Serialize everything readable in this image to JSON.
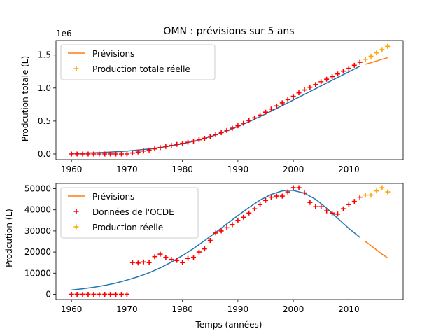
{
  "chart_data": {
    "title": "OMN : prévisions sur 5 ans",
    "xlabel": "Temps (années)",
    "charts": [
      {
        "type": "line",
        "ylabel": "Prodcution totale (L)",
        "y_offset_label": "1e6",
        "xlim": [
          1957.2,
          2019.8
        ],
        "ylim": [
          -0.085,
          1.72
        ],
        "x_ticks": [
          1960,
          1970,
          1980,
          1990,
          2000,
          2010
        ],
        "y_ticks": [
          0.0,
          0.5,
          1.0,
          1.5
        ],
        "y_tick_labels": [
          "0.0",
          "0.5",
          "1.0",
          "1.5"
        ],
        "legend": {
          "placement": "top-left",
          "entries": [
            {
              "label": "Prévisions",
              "kind": "line",
              "color": "#ff7f0e"
            },
            {
              "label": "Production totale réelle",
              "kind": "plus",
              "color": "#ffa500"
            }
          ]
        },
        "series": [
          {
            "style": "line",
            "color": "#1f77b4",
            "x": [
              1960,
              1962,
              1964,
              1966,
              1968,
              1970,
              1972,
              1974,
              1976,
              1978,
              1980,
              1982,
              1984,
              1986,
              1988,
              1990,
              1992,
              1994,
              1996,
              1998,
              2000,
              2002,
              2004,
              2006,
              2008,
              2010,
              2012
            ],
            "y": [
              0.01,
              0.013,
              0.018,
              0.025,
              0.034,
              0.046,
              0.06,
              0.077,
              0.098,
              0.124,
              0.155,
              0.193,
              0.238,
              0.29,
              0.35,
              0.417,
              0.49,
              0.568,
              0.65,
              0.735,
              0.82,
              0.905,
              0.99,
              1.075,
              1.16,
              1.245,
              1.33
            ]
          },
          {
            "style": "line",
            "color": "#ff7f0e",
            "x": [
              2013,
              2014,
              2015,
              2016,
              2017
            ],
            "y": [
              1.36,
              1.385,
              1.41,
              1.435,
              1.46
            ]
          },
          {
            "style": "plus",
            "color": "#ff0000",
            "x": [
              1960,
              1961,
              1962,
              1963,
              1964,
              1965,
              1966,
              1967,
              1968,
              1969,
              1970,
              1971,
              1972,
              1973,
              1974,
              1975,
              1976,
              1977,
              1978,
              1979,
              1980,
              1981,
              1982,
              1983,
              1984,
              1985,
              1986,
              1987,
              1988,
              1989,
              1990,
              1991,
              1992,
              1993,
              1994,
              1995,
              1996,
              1997,
              1998,
              1999,
              2000,
              2001,
              2002,
              2003,
              2004,
              2005,
              2006,
              2007,
              2008,
              2009,
              2010,
              2011,
              2012
            ],
            "y": [
              0,
              0,
              0,
              0,
              0,
              0,
              0,
              0,
              0,
              0,
              0,
              0.015,
              0.03,
              0.045,
              0.06,
              0.078,
              0.097,
              0.114,
              0.131,
              0.147,
              0.162,
              0.179,
              0.197,
              0.217,
              0.239,
              0.265,
              0.294,
              0.324,
              0.357,
              0.392,
              0.428,
              0.466,
              0.506,
              0.548,
              0.59,
              0.635,
              0.682,
              0.729,
              0.776,
              0.825,
              0.876,
              0.927,
              0.971,
              1.012,
              1.054,
              1.095,
              1.134,
              1.172,
              1.213,
              1.256,
              1.299,
              1.345,
              1.39
            ]
          },
          {
            "style": "plus",
            "color": "#ffa500",
            "x": [
              2013,
              2014,
              2015,
              2016,
              2017
            ],
            "y": [
              1.435,
              1.482,
              1.532,
              1.583,
              1.632
            ]
          }
        ]
      },
      {
        "type": "line",
        "ylabel": "Prodcution (L)",
        "xlim": [
          1957.2,
          2019.8
        ],
        "ylim": [
          -2500,
          52500
        ],
        "x_ticks": [
          1960,
          1970,
          1980,
          1990,
          2000,
          2010
        ],
        "x_tick_labels": [
          "1960",
          "1970",
          "1980",
          "1990",
          "2000",
          "2010"
        ],
        "y_ticks": [
          0,
          10000,
          20000,
          30000,
          40000,
          50000
        ],
        "y_tick_labels": [
          "0",
          "10000",
          "20000",
          "30000",
          "40000",
          "50000"
        ],
        "legend": {
          "placement": "top-left",
          "entries": [
            {
              "label": "Prévisions",
              "kind": "line",
              "color": "#ff7f0e"
            },
            {
              "label": "Données de l'OCDE",
              "kind": "plus",
              "color": "#ff0000"
            },
            {
              "label": "Production réelle",
              "kind": "plus",
              "color": "#ffa500"
            }
          ]
        },
        "series": [
          {
            "style": "line",
            "color": "#1f77b4",
            "x": [
              1960,
              1962,
              1964,
              1966,
              1968,
              1970,
              1972,
              1974,
              1976,
              1978,
              1980,
              1982,
              1984,
              1986,
              1988,
              1990,
              1992,
              1994,
              1996,
              1998,
              1999,
              2000,
              2002,
              2004,
              2006,
              2008,
              2010,
              2012
            ],
            "y": [
              2000,
              2600,
              3300,
              4200,
              5300,
              6700,
              8300,
              10200,
              12500,
              15200,
              18300,
              21700,
              25400,
              29300,
              33300,
              37300,
              41100,
              44600,
              47300,
              49000,
              49300,
              49200,
              47900,
              45000,
              40800,
              36000,
              31200,
              27000
            ]
          },
          {
            "style": "line",
            "color": "#ff7f0e",
            "x": [
              2013,
              2014,
              2015,
              2016,
              2017
            ],
            "y": [
              25000,
              23000,
              21000,
              19000,
              17200
            ]
          },
          {
            "style": "plus",
            "color": "#ff0000",
            "x": [
              1960,
              1961,
              1962,
              1963,
              1964,
              1965,
              1966,
              1967,
              1968,
              1969,
              1970,
              1971,
              1972,
              1973,
              1974,
              1975,
              1976,
              1977,
              1978,
              1979,
              1980,
              1981,
              1982,
              1983,
              1984,
              1985,
              1986,
              1987,
              1988,
              1989,
              1990,
              1991,
              1992,
              1993,
              1994,
              1995,
              1996,
              1997,
              1998,
              1999,
              2000,
              2001,
              2002,
              2003,
              2004,
              2005,
              2006,
              2007,
              2008,
              2009,
              2010,
              2011,
              2012
            ],
            "y": [
              0,
              0,
              0,
              0,
              0,
              0,
              0,
              0,
              0,
              0,
              0,
              15000,
              14800,
              15300,
              15000,
              17800,
              19000,
              17500,
              16500,
              16000,
              15000,
              17000,
              17500,
              20000,
              21500,
              25500,
              29000,
              30000,
              31500,
              33000,
              35000,
              36500,
              38500,
              40500,
              42500,
              44500,
              46000,
              46500,
              46500,
              48500,
              50500,
              50500,
              48000,
              43500,
              41500,
              41500,
              39500,
              38500,
              38000,
              40500,
              42500,
              44000,
              46000
            ]
          },
          {
            "style": "plus",
            "color": "#ffa500",
            "x": [
              2013,
              2014,
              2015,
              2016,
              2017
            ],
            "y": [
              47000,
              47000,
              49000,
              50500,
              48500
            ]
          }
        ]
      }
    ]
  }
}
